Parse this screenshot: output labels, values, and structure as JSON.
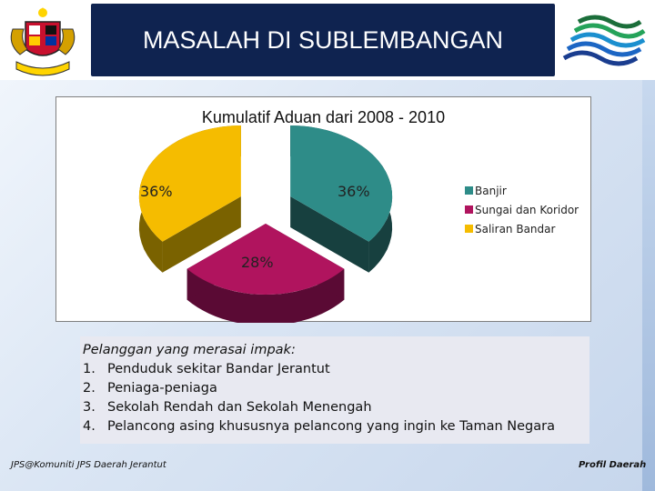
{
  "slide": {
    "title": "MASALAH DI SUBLEMBANGAN",
    "footer_left": "JPS@Komuniti JPS Daerah Jerantut",
    "footer_right": "Profil Daerah"
  },
  "logos": {
    "left": "coat-of-arms-icon",
    "right": "water-waves-icon"
  },
  "chart_data": {
    "type": "pie",
    "title": "Kumulatif Aduan dari 2008 - 2010",
    "categories": [
      "Banjir",
      "Sungai dan Koridor",
      "Saliran Bandar"
    ],
    "values": [
      36,
      28,
      36
    ],
    "labels": [
      "36%",
      "28%",
      "36%"
    ],
    "colors": [
      "#2e8c88",
      "#b0145e",
      "#f5bc00"
    ],
    "side_colors": [
      "#17403f",
      "#5a0a34",
      "#7a6200"
    ],
    "exploded": true,
    "three_d": true,
    "legend_position": "right"
  },
  "impact": {
    "heading": "Pelanggan yang merasai impak:",
    "items": [
      {
        "num": "1.",
        "text": "Penduduk sekitar Bandar Jerantut"
      },
      {
        "num": "2.",
        "text": "Peniaga-peniaga"
      },
      {
        "num": "3.",
        "text": "Sekolah Rendah dan Sekolah Menengah"
      },
      {
        "num": "4.",
        "text": "Pelancong asing khususnya pelancong yang ingin ke Taman Negara"
      }
    ]
  }
}
